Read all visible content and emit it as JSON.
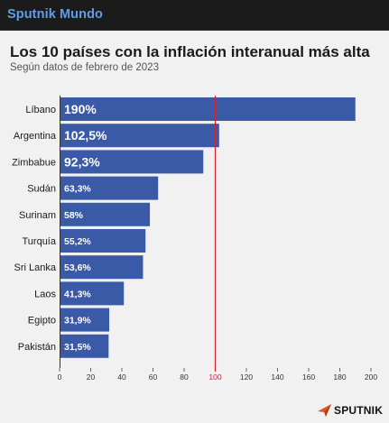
{
  "app_bar": {
    "title": "Sputnik Mundo"
  },
  "logo": {
    "text": "SPUTNIK"
  },
  "chart_data": {
    "type": "bar",
    "orientation": "horizontal",
    "title": "Los 10 países con la inflación interanual más alta",
    "subtitle": "Según datos de febrero de 2023",
    "categories": [
      "Líbano",
      "Argentina",
      "Zimbabue",
      "Sudán",
      "Surinam",
      "Turquía",
      "Sri Lanka",
      "Laos",
      "Egipto",
      "Pakistán"
    ],
    "values": [
      190,
      102.5,
      92.3,
      63.3,
      58,
      55.2,
      53.6,
      41.3,
      31.9,
      31.5
    ],
    "value_labels": [
      "190%",
      "102,5%",
      "92,3%",
      "63,3%",
      "58%",
      "55,2%",
      "53,6%",
      "41,3%",
      "31,9%",
      "31,5%"
    ],
    "xlim": [
      0,
      200
    ],
    "ticks": [
      0,
      20,
      40,
      60,
      80,
      100,
      120,
      140,
      160,
      180,
      200
    ],
    "tick_labels": [
      "0",
      "20",
      "40",
      "60",
      "80",
      "100",
      "120",
      "140",
      "160",
      "180",
      "200"
    ],
    "reference_line": 100,
    "bar_color": "#3a5aa7",
    "reference_color": "#d11f2b",
    "grid": false,
    "legend": "none"
  }
}
